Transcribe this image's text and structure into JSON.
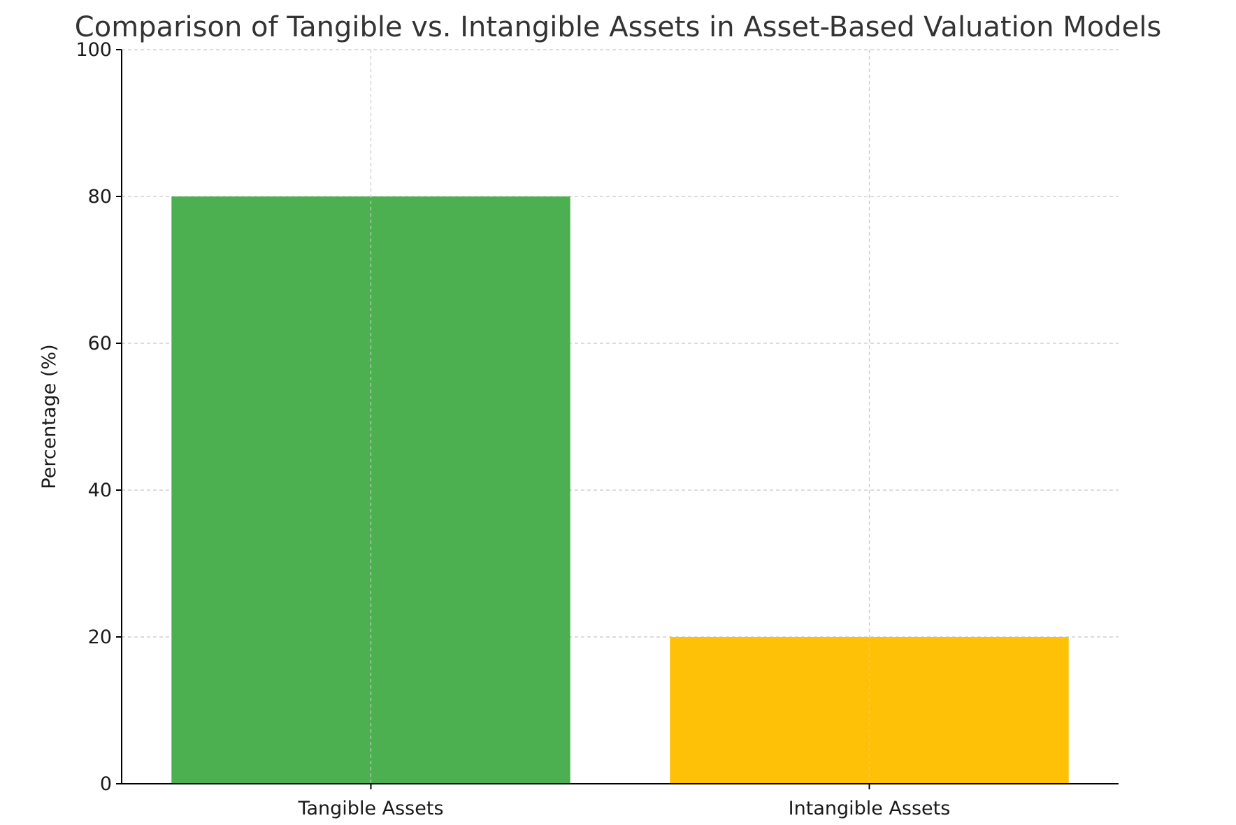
{
  "chart_data": {
    "type": "bar",
    "title": "Comparison of Tangible vs. Intangible Assets in Asset-Based Valuation Models",
    "xlabel": "",
    "ylabel": "Percentage (%)",
    "categories": [
      "Tangible Assets",
      "Intangible Assets"
    ],
    "values": [
      80,
      20
    ],
    "colors": [
      "#4caf50",
      "#ffc107"
    ],
    "ylim": [
      0,
      100
    ],
    "yticks": [
      0,
      20,
      40,
      60,
      80,
      100
    ],
    "grid": true
  }
}
